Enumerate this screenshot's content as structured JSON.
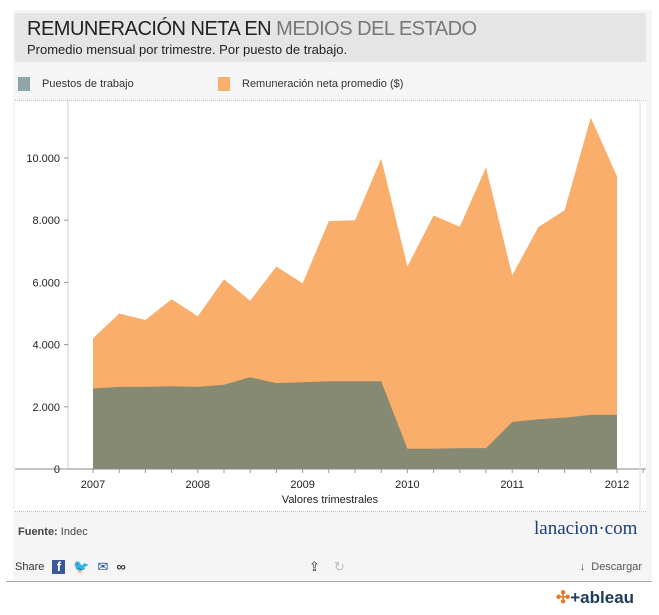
{
  "header": {
    "title_bold": "REMUNERACIÓN NETA EN",
    "title_light": "MEDIOS DEL ESTADO",
    "subtitle": "Promedio mensual por trimestre. Por puesto de trabajo."
  },
  "chart_data": {
    "type": "area",
    "xlabel": "Valores trimestrales",
    "x_ticks": [
      "2007",
      "2008",
      "2009",
      "2010",
      "2011",
      "2012"
    ],
    "y_ticks": [
      "0",
      "2.000",
      "4.000",
      "6.000",
      "8.000",
      "10.000"
    ],
    "ylim": [
      0,
      11500
    ],
    "x": [
      "2007 T1",
      "2007 T2",
      "2007 T3",
      "2007 T4",
      "2008 T1",
      "2008 T2",
      "2008 T3",
      "2008 T4",
      "2009 T1",
      "2009 T2",
      "2009 T3",
      "2009 T4",
      "2010 T1",
      "2010 T2",
      "2010 T3",
      "2010 T4",
      "2011 T1",
      "2011 T2",
      "2011 T3",
      "2011 T4",
      "2012 T1"
    ],
    "series": [
      {
        "name": "Remuneración neta promedio ($)",
        "color": "#f9ae6c",
        "values": [
          4200,
          5000,
          4790,
          5460,
          4910,
          6100,
          5410,
          6510,
          5970,
          7970,
          8000,
          9980,
          6510,
          8150,
          7790,
          9700,
          6230,
          7780,
          8320,
          11300,
          9410
        ]
      },
      {
        "name": "Puestos de trabajo",
        "color": "#8fa5a8",
        "area_color": "#878a72",
        "values": [
          2590,
          2640,
          2640,
          2660,
          2640,
          2710,
          2950,
          2760,
          2790,
          2820,
          2820,
          2820,
          650,
          650,
          670,
          670,
          1510,
          1600,
          1650,
          1740,
          1740
        ]
      }
    ],
    "grid": false,
    "legend": "top"
  },
  "footer": {
    "source_label": "Fuente:",
    "source_value": "Indec",
    "logo": "lanacion·com",
    "share": "Share",
    "download": "Descargar",
    "brand": "+ableau"
  }
}
